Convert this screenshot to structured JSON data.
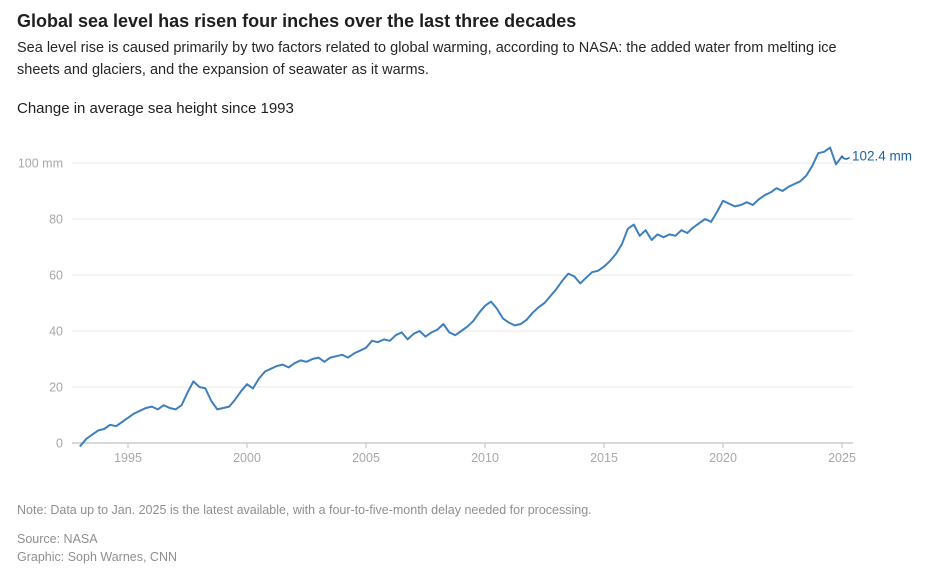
{
  "header": {
    "title": "Global sea level has risen four inches over the last three decades",
    "subtitle": "Sea level rise is caused primarily by two factors related to global warming, according to NASA: the added water from melting ice sheets and glaciers, and the expansion of seawater as it warms."
  },
  "chart_title": "Change in average sea height since 1993",
  "footer": {
    "note": "Note: Data up to Jan. 2025 is the latest available, with a four-to-five-month delay needed for processing.",
    "source": "Source: NASA",
    "credit": "Graphic: Soph Warnes, CNN"
  },
  "colors": {
    "line": "#3e80bd",
    "end_label": "#1c63a2",
    "gridline": "#e9e9e9",
    "zero_line": "#b0b0b0",
    "tick": "#c2c2c2",
    "axis_label": "#a8a8a8"
  },
  "chart_data": {
    "type": "line",
    "title": "Change in average sea height since 1993",
    "xlabel": "",
    "ylabel": "mm",
    "unit": "mm",
    "x_start": 1993.0,
    "x_step": 0.25,
    "xlim": [
      1993,
      2025.5
    ],
    "ylim": [
      -5,
      110
    ],
    "x_ticks": [
      1995,
      2000,
      2005,
      2010,
      2015,
      2020,
      2025
    ],
    "y_ticks": [
      0,
      20,
      40,
      60,
      80,
      100
    ],
    "y_top_label": "100 mm",
    "grid": "horizontal",
    "legend": "none",
    "end_label": "102.4 mm",
    "last_value": 102.4,
    "series": [
      {
        "name": "Change in average sea height (mm)",
        "values": [
          -1,
          1.5,
          3,
          4.5,
          5,
          6.5,
          6,
          7.5,
          9,
          10.5,
          11.5,
          12.5,
          13,
          12,
          13.5,
          12.5,
          12,
          13.5,
          18,
          22,
          20,
          19.5,
          15,
          12,
          12.5,
          13,
          15.5,
          18.5,
          21,
          19.5,
          23,
          25.5,
          26.5,
          27.5,
          28,
          27,
          28.5,
          29.5,
          29,
          30,
          30.5,
          29,
          30.5,
          31,
          31.5,
          30.5,
          32,
          33,
          34,
          36.5,
          36,
          37,
          36.5,
          38.5,
          39.5,
          37,
          39,
          40,
          38,
          39.5,
          40.5,
          42.5,
          39.5,
          38.5,
          40,
          41.5,
          43.5,
          46.5,
          49,
          50.5,
          48,
          44.5,
          43,
          42,
          42.5,
          44,
          46.5,
          48.5,
          50,
          52.5,
          55,
          58,
          60.5,
          59.5,
          57,
          59,
          61,
          61.5,
          63,
          65,
          67.5,
          71,
          76.5,
          78,
          74,
          76,
          72.5,
          74.5,
          73.5,
          74.5,
          74,
          76,
          75,
          77,
          78.5,
          80,
          79,
          82.5,
          86.5,
          85.5,
          84.5,
          85,
          86,
          85,
          87,
          88.5,
          89.5,
          91,
          90,
          91.5,
          92.5,
          93.5,
          95.5,
          99,
          103.5,
          104,
          105.5,
          99.5,
          102.4
        ]
      }
    ]
  }
}
